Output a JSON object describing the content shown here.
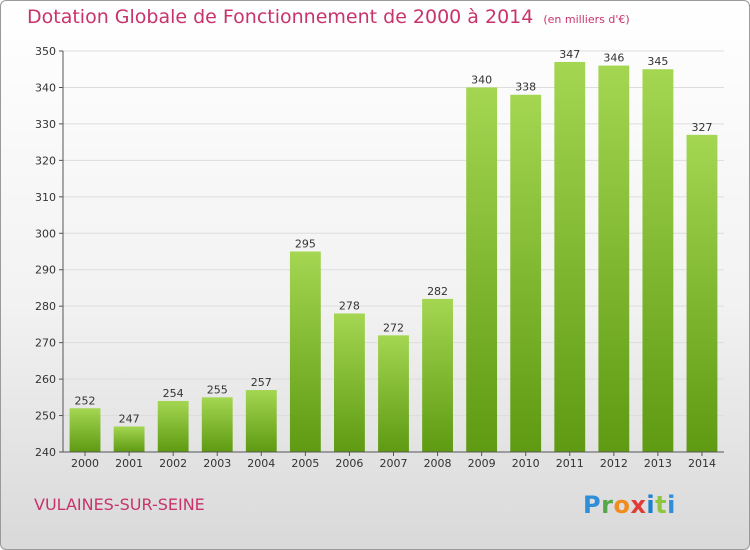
{
  "chart_data": {
    "type": "bar",
    "title": "Dotation Globale de Fonctionnement de 2000 à 2014",
    "unit": "(en milliers d'€)",
    "categories": [
      "2000",
      "2001",
      "2002",
      "2003",
      "2004",
      "2005",
      "2006",
      "2007",
      "2008",
      "2009",
      "2010",
      "2011",
      "2012",
      "2013",
      "2014"
    ],
    "values": [
      252,
      247,
      254,
      255,
      257,
      295,
      278,
      272,
      282,
      340,
      338,
      347,
      346,
      345,
      327
    ],
    "ylim": [
      240,
      350
    ],
    "yticks": [
      240,
      250,
      260,
      270,
      280,
      290,
      300,
      310,
      320,
      330,
      340,
      350
    ],
    "xlabel": "",
    "ylabel": "",
    "grid": true,
    "colors": {
      "bar_light": "#9fd24e",
      "bar_dark": "#5e9a12",
      "grid": "#dddddd",
      "title": "#c8336b"
    }
  },
  "commune": "VULAINES-SUR-SEINE",
  "logo": {
    "letters": [
      "P",
      "r",
      "o",
      "x",
      "i",
      "t",
      "i"
    ]
  }
}
